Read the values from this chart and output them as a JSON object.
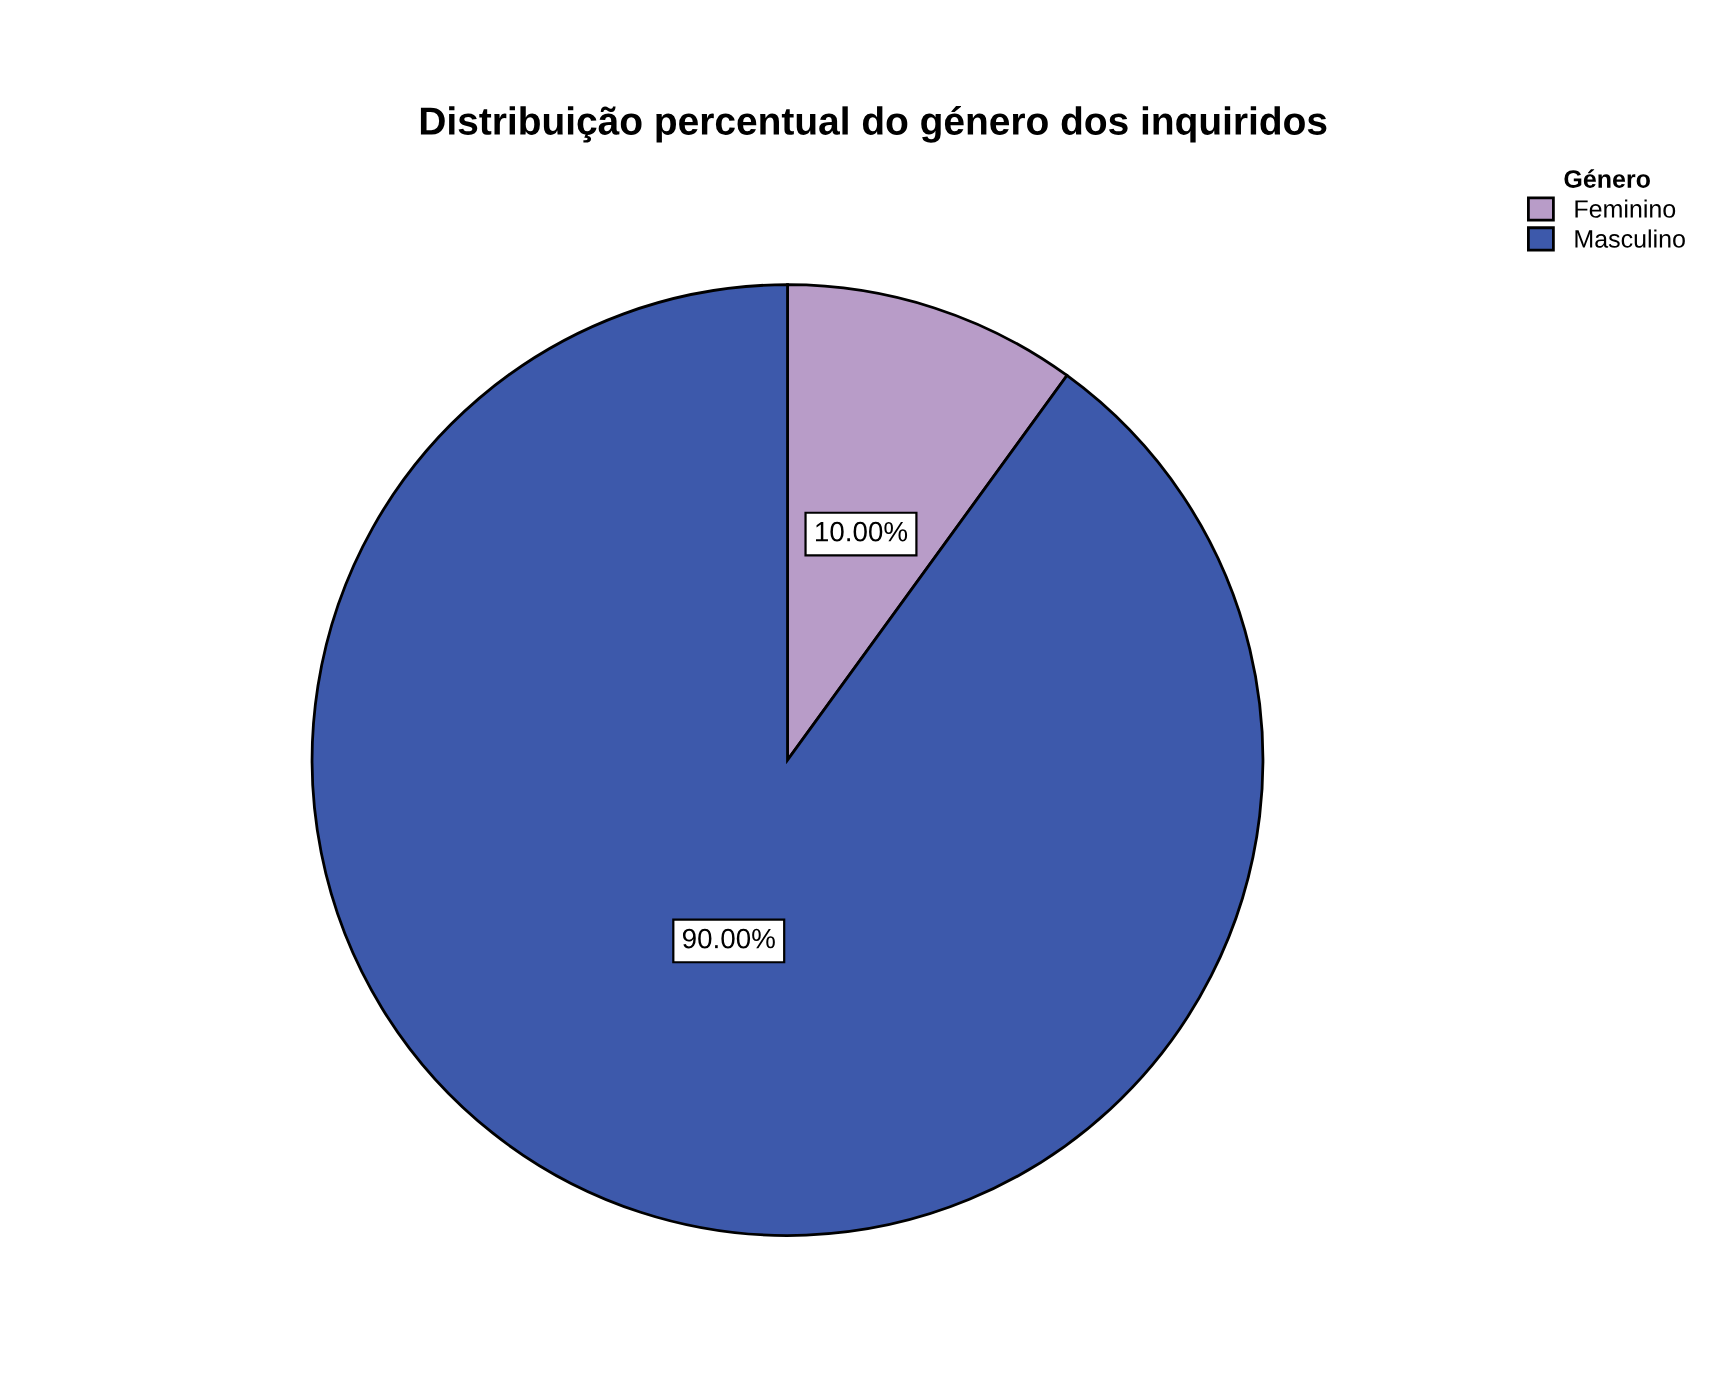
{
  "chart_data": {
    "type": "pie",
    "title": "Distribuição percentual do género dos inquiridos",
    "legend_title": "Género",
    "categories": [
      "Feminino",
      "Masculino"
    ],
    "values": [
      10,
      90
    ],
    "value_labels": [
      "10.00%",
      "90.00%"
    ],
    "colors": [
      "#b89cc8",
      "#3d59ab"
    ],
    "legend": "top right"
  }
}
